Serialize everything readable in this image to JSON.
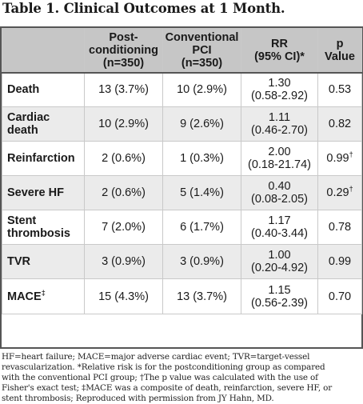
{
  "title": "Table 1. Clinical Outcomes at 1 Month.",
  "columns": [
    "",
    "Post-\nconditioning\n(n=350)",
    "Conventional\nPCI\n(n=350)",
    "RR\n(95% CI)*",
    "p\nValue"
  ],
  "rows": [
    {
      "label": "Death",
      "post": "13 (3.7%)",
      "pci": "10 (2.9%)",
      "rr": "1.30\n(0.58-2.92)",
      "p": "0.53"
    },
    {
      "label": "Cardiac\ndeath",
      "post": "10 (2.9%)",
      "pci": "9 (2.6%)",
      "rr": "1.11\n(0.46-2.70)",
      "p": "0.82"
    },
    {
      "label": "Reinfarction",
      "post": "2 (0.6%)",
      "pci": "1 (0.3%)",
      "rr": "2.00\n(0.18-21.74)",
      "p": "0.99",
      "p_mark": "†"
    },
    {
      "label": "Severe HF",
      "post": "2 (0.6%)",
      "pci": "5 (1.4%)",
      "rr": "0.40\n(0.08-2.05)",
      "p": "0.29",
      "p_mark": "†"
    },
    {
      "label": "Stent\nthrombosis",
      "post": "7 (2.0%)",
      "pci": "6 (1.7%)",
      "rr": "1.17\n(0.40-3.44)",
      "p": "0.78"
    },
    {
      "label": "TVR",
      "post": "3 (0.9%)",
      "pci": "3 (0.9%)",
      "rr": "1.00\n(0.20-4.92)",
      "p": "0.99"
    },
    {
      "label": "MACE",
      "label_mark": "‡",
      "post": "15 (4.3%)",
      "pci": "13 (3.7%)",
      "rr": "1.15\n(0.56-2.39)",
      "p": "0.70"
    }
  ],
  "footnote_lines": [
    "HF=heart failure; MACE=major adverse cardiac event; TVR=target-vessel",
    "revascularization. *Relative risk is for the postconditioning group as compared",
    "with the conventional PCI group; †The p value was calculated with the use of",
    "Fisher's exact test; ‡MACE was a composite of death, reinfarction, severe HF, or",
    "stent thrombosis; Reproduced with permission from JY Hahn, MD."
  ]
}
